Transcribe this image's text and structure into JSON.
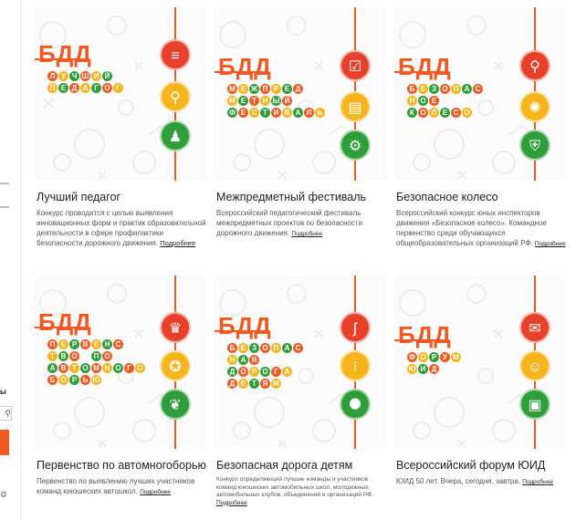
{
  "sidebar": {
    "heading_fragment": "ы",
    "search_icon": "search-icon",
    "bottom_icon": "gear-icon"
  },
  "colors": {
    "accent": "#f05a22",
    "red": "#e8412b",
    "yellow": "#f6b51d",
    "green": "#2f9e3a"
  },
  "cards": [
    {
      "badge": "БДД",
      "tile_rows": [
        "ЛУЧШИЙ",
        "ПЕДАГОГ"
      ],
      "icons": [
        "book-stack-icon",
        "magnifier-icon",
        "teacher-icon"
      ],
      "title": "Лучший педагог",
      "desc": "Конкурс проводится с целью выявления инновационных форм и практик образовательной деятельности в сфере профилактики безопасности дорожного движения.",
      "more": "Подробнее"
    },
    {
      "badge": "БДД",
      "tile_rows": [
        "МЕЖПРЕД",
        "МЕТНЫЙ",
        "ФЕСТИВАЛЬ"
      ],
      "icons": [
        "checklist-icon",
        "document-icon",
        "gear-bulb-icon"
      ],
      "title": "Межпредметный фестиваль",
      "desc": "Всероссийский педагогический фестиваль межпредметных проектов по безопасности дорожного движения.",
      "more": "Подробнее"
    },
    {
      "badge": "БДД",
      "tile_rows": [
        "БЕЗОПАС",
        "НОЕ",
        "КОЛЕСО"
      ],
      "icons": [
        "bicycle-icon",
        "wheel-icon",
        "shield-hand-icon"
      ],
      "title": "Безопасное колесо",
      "desc": "Всероссийский конкурс юных инспекторов движения «Безопасное колесо». Командное первенство среди обучающихся общеобразовательных организаций РФ.",
      "more": "Подробнее"
    },
    {
      "badge": "БДД",
      "tile_rows": [
        "ПЕРВЕНС",
        "ТВО ПО",
        "АВТОМНОГО",
        "БОРЬЮ"
      ],
      "icons": [
        "trophy-icon",
        "medal-icon",
        "laurel-icon"
      ],
      "title": "Первенство по автомногоборью",
      "desc": "Первенство по выявлению лучших участников команд юношеских автошкол.",
      "more": "Подробнее"
    },
    {
      "badge": "БДД",
      "tile_rows": [
        "БЕЗОПАС",
        "НАЯ",
        "ДОРОГА",
        "ДЕТЯМ"
      ],
      "icons": [
        "road-icon",
        "traffic-light-icon",
        "stop-sign-icon"
      ],
      "title": "Безопасная дорога детям",
      "desc": "Конкурс определяющий лучшие команды и участников команд юношеских автомобильных школ, молодежных автомобильных клубов, объединений и организаций РФ.",
      "more": "Подробнее"
    },
    {
      "badge": "БДД",
      "tile_rows": [
        "ФОРУМ",
        "ЮИД"
      ],
      "icons": [
        "chat-icon",
        "people-icon",
        "clipboard-icon"
      ],
      "title": "Всероссийский форум ЮИД",
      "desc": "ЮИД 50 лет. Вчера, сегодня, завтра.",
      "more": "Подробнее"
    }
  ]
}
